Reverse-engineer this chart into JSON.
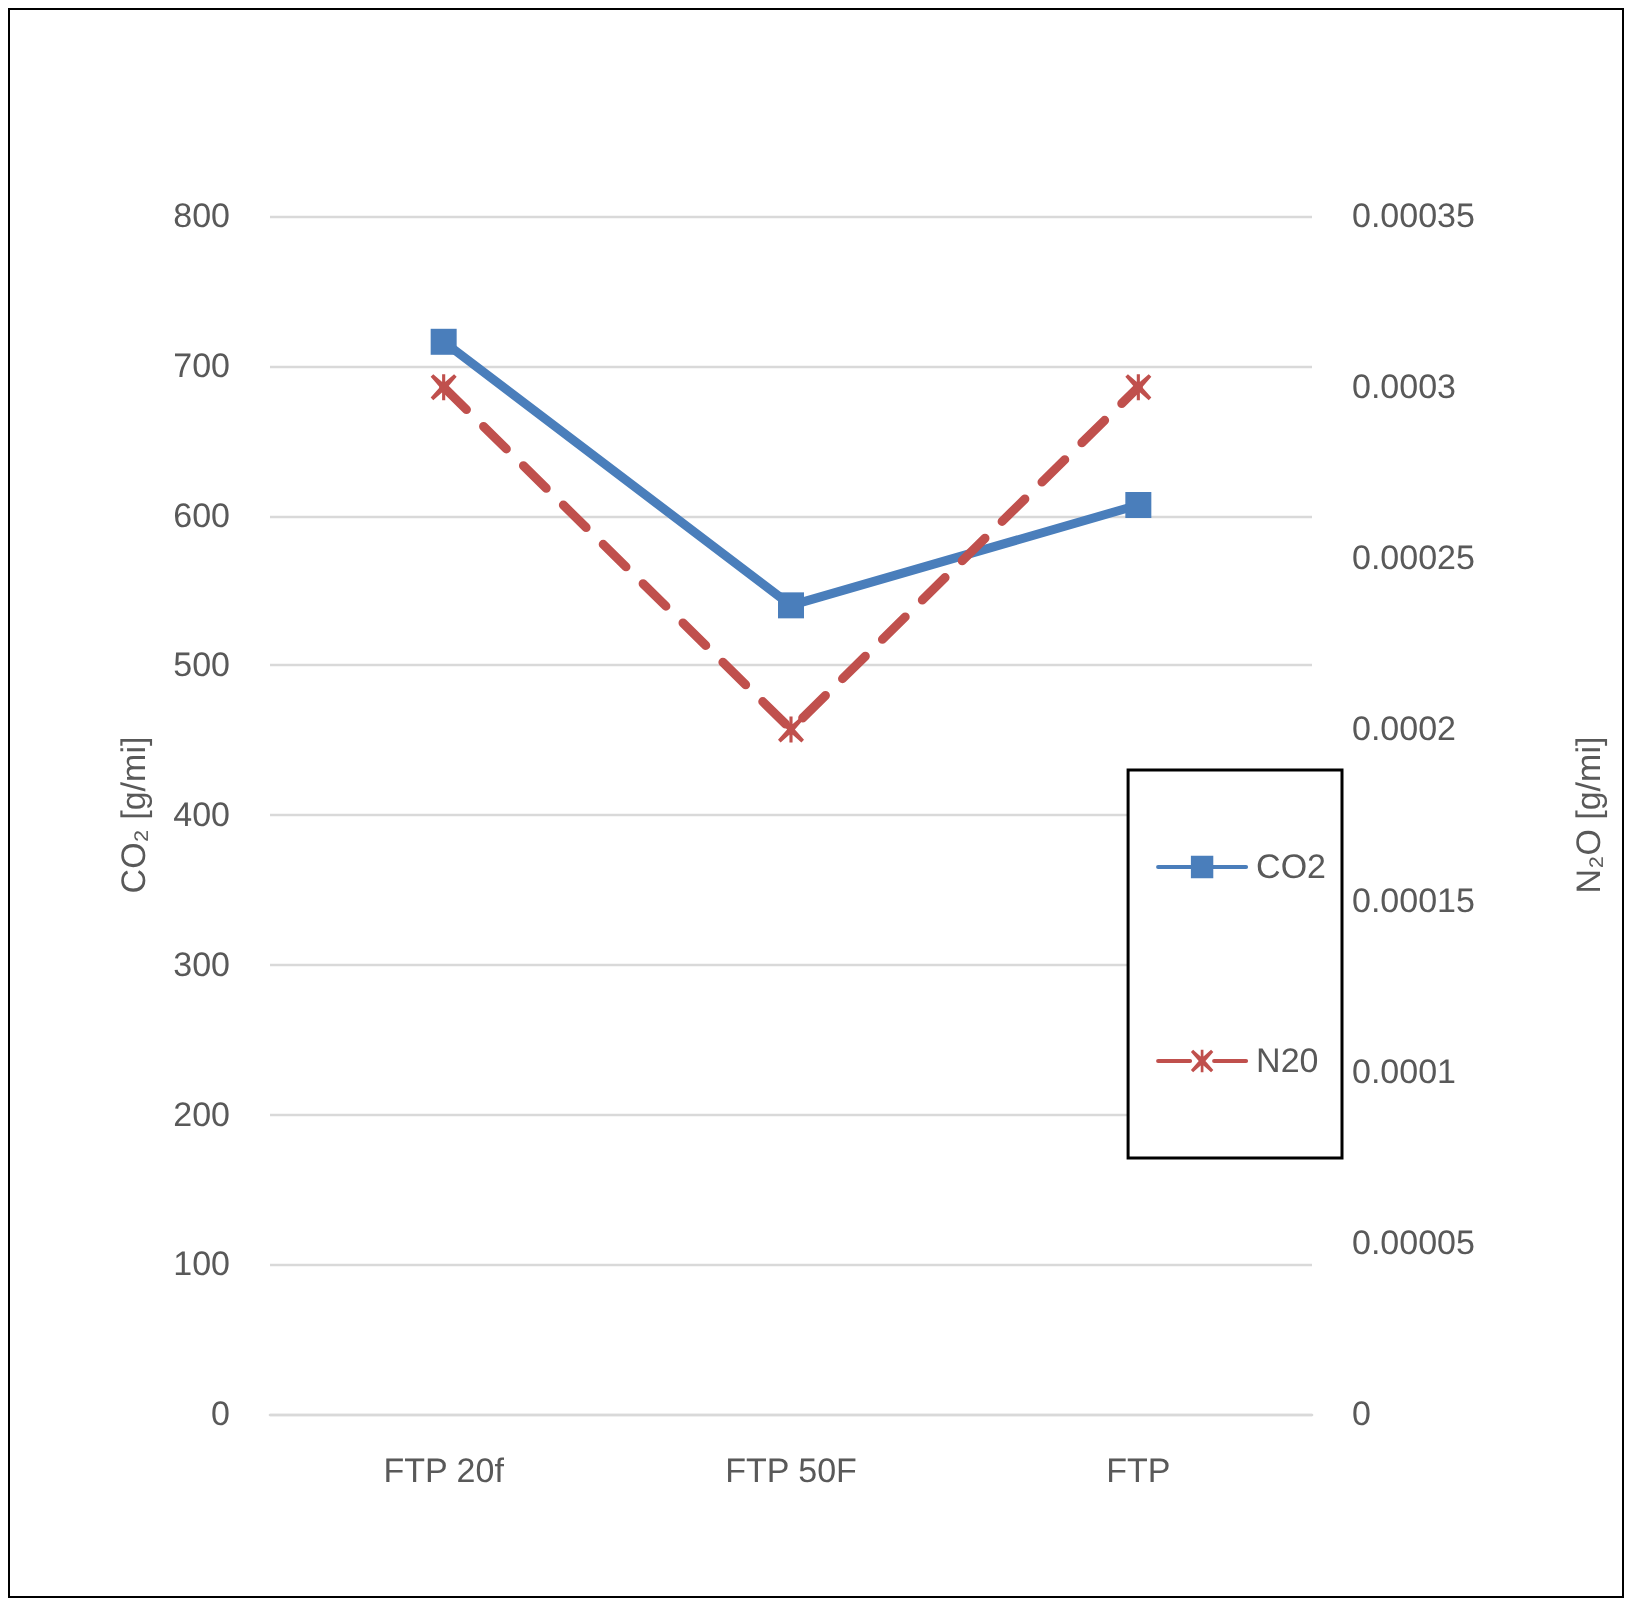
{
  "chart_data": {
    "type": "line",
    "categories": [
      "FTP 20f",
      "FTP 50F",
      "FTP"
    ],
    "series": [
      {
        "name": "CO2",
        "color": "#4a7ebb",
        "values": [
          716,
          540,
          607
        ],
        "marker": "square",
        "line_style": "solid"
      },
      {
        "name": "N20",
        "color": "#c0504d",
        "values": [
          0.0003,
          0.0002,
          0.0003
        ],
        "axis": "y2",
        "marker": "cross",
        "line_style": "dashed"
      }
    ],
    "ylabel": "CO₂ [g/mi]",
    "y2label": "N₂O [g/mi]",
    "ylim": [
      0,
      800
    ],
    "yticks": [
      0,
      100,
      200,
      300,
      400,
      500,
      600,
      700,
      800
    ],
    "y2lim": [
      0,
      0.00035
    ],
    "y2ticks": [
      0,
      {
        "value": 5e-05,
        "label": "0.00005"
      },
      0.0001,
      0.00015,
      0.0002,
      0.00025,
      0.0003,
      0.00035
    ],
    "grid": "y",
    "legend": "right"
  }
}
